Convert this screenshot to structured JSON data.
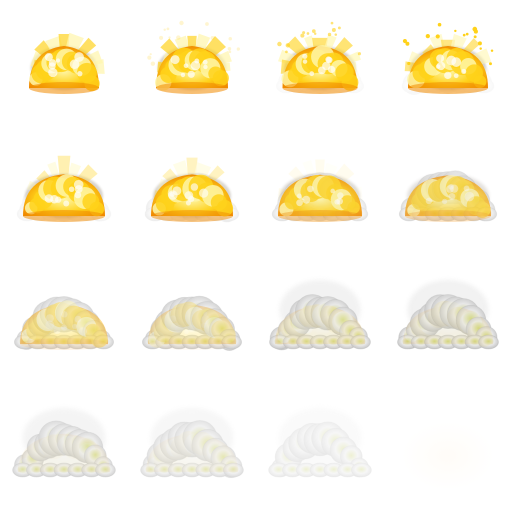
{
  "sprite_sheet": {
    "grid": {
      "columns": 4,
      "rows": 4
    },
    "colors": {
      "fire_core": "#fff6a8",
      "fire_mid": "#ffd21a",
      "fire_edge": "#f08a00",
      "smoke_light": "#e4e4e4",
      "smoke_dark": "#a8a8a8",
      "ember_glow": "#c8d070",
      "afterglow": "#fff0d8"
    },
    "frames": [
      {
        "fire": 1.0,
        "smoke": 0.05,
        "spread": 0.7,
        "rays": 1.0,
        "sparks": 0.0,
        "opacity": 1.0
      },
      {
        "fire": 1.0,
        "smoke": 0.05,
        "spread": 0.72,
        "rays": 1.0,
        "sparks": 0.2,
        "opacity": 1.0
      },
      {
        "fire": 1.0,
        "smoke": 0.08,
        "spread": 0.75,
        "rays": 0.9,
        "sparks": 0.6,
        "opacity": 1.0
      },
      {
        "fire": 1.0,
        "smoke": 0.1,
        "spread": 0.8,
        "rays": 0.8,
        "sparks": 1.0,
        "opacity": 1.0
      },
      {
        "fire": 0.95,
        "smoke": 0.15,
        "spread": 0.82,
        "rays": 0.5,
        "sparks": 0.0,
        "opacity": 1.0
      },
      {
        "fire": 0.9,
        "smoke": 0.25,
        "spread": 0.82,
        "rays": 0.4,
        "sparks": 0.0,
        "opacity": 1.0
      },
      {
        "fire": 0.8,
        "smoke": 0.4,
        "spread": 0.84,
        "rays": 0.1,
        "sparks": 0.0,
        "opacity": 1.0
      },
      {
        "fire": 0.65,
        "smoke": 0.55,
        "spread": 0.86,
        "rays": 0.0,
        "sparks": 0.0,
        "opacity": 1.0
      },
      {
        "fire": 0.45,
        "smoke": 0.7,
        "spread": 0.88,
        "rays": 0.0,
        "sparks": 0.0,
        "opacity": 0.95
      },
      {
        "fire": 0.3,
        "smoke": 0.8,
        "spread": 0.88,
        "rays": 0.0,
        "sparks": 0.0,
        "opacity": 0.9
      },
      {
        "fire": 0.15,
        "smoke": 0.9,
        "spread": 0.9,
        "rays": 0.0,
        "sparks": 0.0,
        "opacity": 0.85
      },
      {
        "fire": 0.1,
        "smoke": 1.0,
        "spread": 0.9,
        "rays": 0.0,
        "sparks": 0.0,
        "opacity": 0.85
      },
      {
        "fire": 0.08,
        "smoke": 1.0,
        "spread": 0.92,
        "rays": 0.0,
        "sparks": 0.0,
        "opacity": 0.65
      },
      {
        "fire": 0.08,
        "smoke": 1.0,
        "spread": 0.92,
        "rays": 0.0,
        "sparks": 0.0,
        "opacity": 0.5
      },
      {
        "fire": 0.05,
        "smoke": 1.0,
        "spread": 0.92,
        "rays": 0.0,
        "sparks": 0.0,
        "opacity": 0.3
      },
      {
        "fire": 0.0,
        "smoke": 0.0,
        "spread": 0.9,
        "rays": 0.0,
        "sparks": 0.0,
        "opacity": 0.2
      }
    ]
  }
}
